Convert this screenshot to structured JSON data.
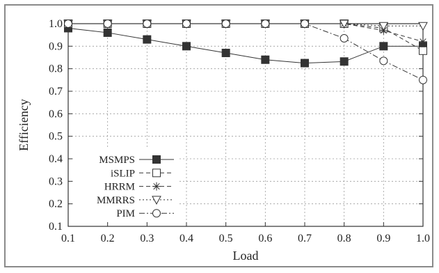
{
  "chart_data": {
    "type": "line",
    "xlabel": "Load",
    "ylabel": "Efficiency",
    "xlim": [
      0.1,
      1.0
    ],
    "ylim": [
      0.1,
      1.0
    ],
    "x_ticks": [
      "0.1",
      "0.2",
      "0.3",
      "0.4",
      "0.5",
      "0.6",
      "0.7",
      "0.8",
      "0.9",
      "1.0"
    ],
    "y_ticks": [
      "0.1",
      "0.2",
      "0.3",
      "0.4",
      "0.5",
      "0.6",
      "0.7",
      "0.8",
      "0.9",
      "1.0"
    ],
    "grid": true,
    "legend_position": "bottom-left",
    "x": [
      0.1,
      0.2,
      0.3,
      0.4,
      0.5,
      0.6,
      0.7,
      0.8,
      0.9,
      1.0
    ],
    "series": [
      {
        "name": "MSMPS",
        "marker": "filled-square",
        "dash": "solid",
        "values": [
          0.98,
          0.96,
          0.93,
          0.9,
          0.87,
          0.84,
          0.825,
          0.832,
          0.9,
          0.9
        ]
      },
      {
        "name": "iSLIP",
        "marker": "open-square",
        "dash": "dashed",
        "values": [
          1.0,
          1.0,
          1.0,
          1.0,
          1.0,
          1.0,
          1.0,
          1.0,
          0.98,
          0.88
        ]
      },
      {
        "name": "HRRM",
        "marker": "asterisk",
        "dash": "dashed",
        "values": [
          1.0,
          1.0,
          1.0,
          1.0,
          1.0,
          1.0,
          1.0,
          1.0,
          0.97,
          0.92
        ]
      },
      {
        "name": "MMRRS",
        "marker": "down-triangle",
        "dash": "dotted",
        "values": [
          1.0,
          1.0,
          1.0,
          1.0,
          1.0,
          1.0,
          1.0,
          1.0,
          0.99,
          0.99
        ]
      },
      {
        "name": "PIM",
        "marker": "circle",
        "dash": "dashdot",
        "values": [
          1.0,
          1.0,
          1.0,
          1.0,
          1.0,
          1.0,
          1.0,
          0.935,
          0.835,
          0.75
        ]
      }
    ],
    "colors": {
      "line": "#333333",
      "grid": "#9a9a9a",
      "frame": "#8a8a8a"
    }
  }
}
